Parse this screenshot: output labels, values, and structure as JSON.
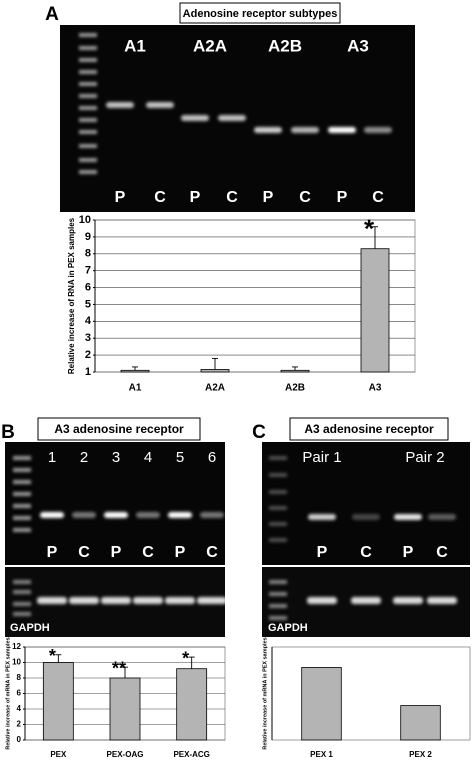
{
  "panels": [
    {
      "label": "A",
      "title": "Adenosine receptor subtypes",
      "lane_groups": [
        "A1",
        "A2A",
        "A2B",
        "A3"
      ],
      "lanes": [
        "P",
        "C",
        "P",
        "C",
        "P",
        "C",
        "P",
        "C"
      ]
    },
    {
      "label": "B",
      "title": "A3 adenosine receptor",
      "lane_groups": [
        "1",
        "2",
        "3",
        "4",
        "5",
        "6"
      ],
      "lanes": [
        "P",
        "C",
        "P",
        "C",
        "P",
        "C"
      ],
      "loading_control": "GAPDH"
    },
    {
      "label": "C",
      "title": "A3 adenosine receptor",
      "lane_groups": [
        "Pair 1",
        "Pair 2"
      ],
      "lanes": [
        "P",
        "C",
        "P",
        "C"
      ],
      "loading_control": "GAPDH"
    }
  ],
  "chart_data": [
    {
      "type": "bar",
      "ylabel": "Relative increase of RNA in PEX samples",
      "categories": [
        "A1",
        "A2A",
        "A2B",
        "A3"
      ],
      "values": [
        1.1,
        1.15,
        1.1,
        8.3
      ],
      "errors": [
        0.2,
        0.65,
        0.2,
        1.3
      ],
      "ylim": [
        1,
        10
      ],
      "yticks": [
        1,
        2,
        3,
        4,
        5,
        6,
        7,
        8,
        9,
        10
      ],
      "grid": true,
      "color": "#b4b4b4",
      "annotations": [
        {
          "category": "A3",
          "text": "*"
        }
      ]
    },
    {
      "type": "bar",
      "ylabel": "Relative increase of mRNA in PEX samples",
      "categories": [
        "PEX",
        "PEX-OAG",
        "PEX-ACG"
      ],
      "values": [
        10,
        8,
        9.2
      ],
      "errors": [
        1,
        1.4,
        1.5
      ],
      "ylim": [
        0,
        12
      ],
      "yticks": [
        0,
        2,
        4,
        6,
        8,
        10,
        12
      ],
      "grid": true,
      "color": "#b4b4b4",
      "annotations": [
        {
          "category": "PEX",
          "text": "*"
        },
        {
          "category": "PEX-OAG",
          "text": "**"
        },
        {
          "category": "PEX-ACG",
          "text": "*"
        }
      ]
    },
    {
      "type": "bar",
      "ylabel": "Relative increase of mRNA in PEX samples",
      "categories": [
        "PEX 1",
        "PEX 2"
      ],
      "values": [
        7.8,
        3.7
      ],
      "ylim": [
        0,
        10
      ],
      "grid": false,
      "color": "#b4b4b4"
    }
  ]
}
